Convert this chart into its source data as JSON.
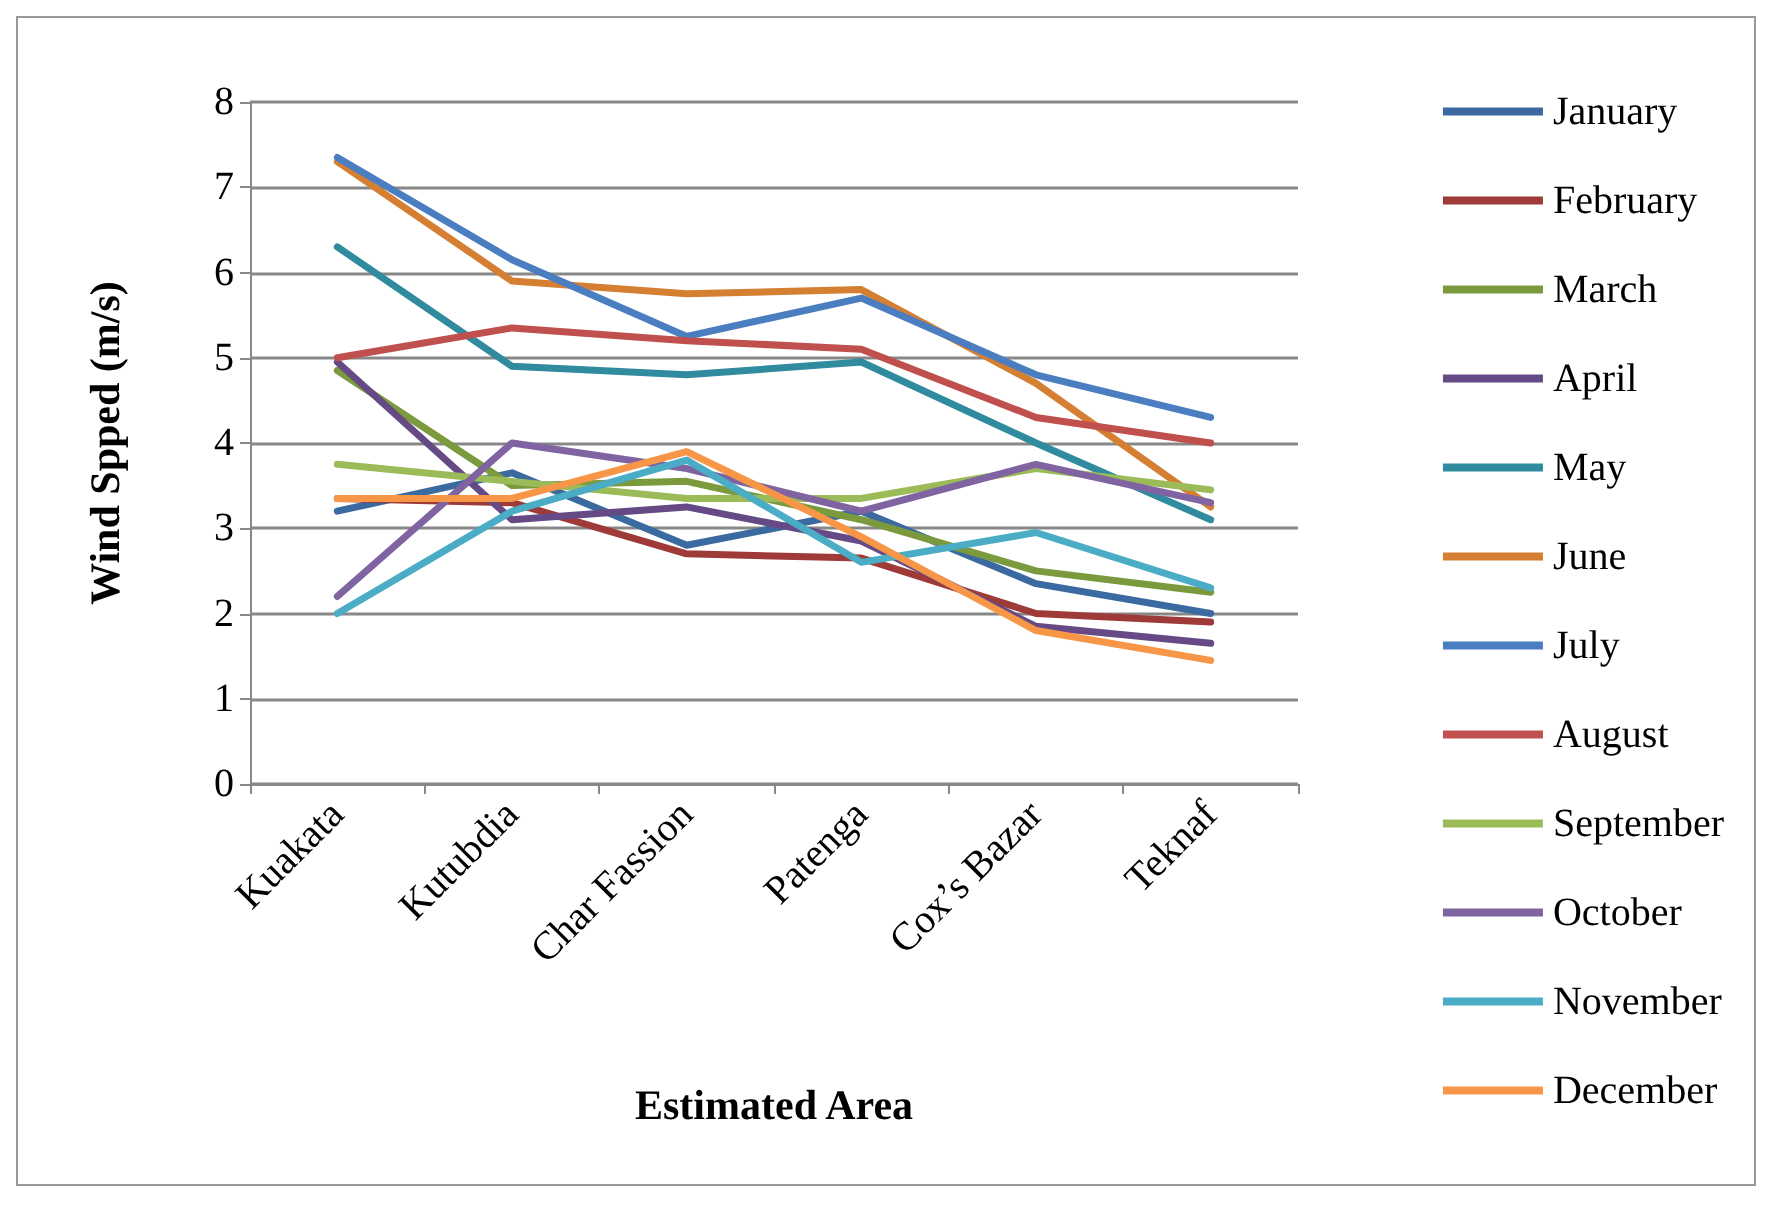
{
  "chart_data": {
    "type": "line",
    "xlabel": "Estimated Area",
    "ylabel": "Wind Spped (m/s)",
    "categories": [
      "Kuakata",
      "Kutubdia",
      "Char Fassion",
      "Patenga",
      "Cox’s Bazar",
      "Teknaf"
    ],
    "ylim": [
      0,
      8
    ],
    "yticks": [
      0,
      1,
      2,
      3,
      4,
      5,
      6,
      7,
      8
    ],
    "grid": "y",
    "legend": "right",
    "marker": "none",
    "line_style": "solid",
    "series": [
      {
        "name": "January",
        "color": "#3a6aa0",
        "values": [
          3.2,
          3.65,
          2.8,
          3.2,
          2.35,
          2.0
        ]
      },
      {
        "name": "February",
        "color": "#9e3a38",
        "values": [
          3.35,
          3.3,
          2.7,
          2.65,
          2.0,
          1.9
        ]
      },
      {
        "name": "March",
        "color": "#7b9a3e",
        "values": [
          4.85,
          3.5,
          3.55,
          3.1,
          2.5,
          2.25
        ]
      },
      {
        "name": "April",
        "color": "#654a86",
        "values": [
          4.95,
          3.1,
          3.25,
          2.85,
          1.85,
          1.65
        ]
      },
      {
        "name": "May",
        "color": "#318b9f",
        "values": [
          6.3,
          4.9,
          4.8,
          4.95,
          4.0,
          3.1
        ]
      },
      {
        "name": "June",
        "color": "#d57f33",
        "values": [
          7.3,
          5.9,
          5.75,
          5.8,
          4.7,
          3.25
        ]
      },
      {
        "name": "July",
        "color": "#4a7ec1",
        "values": [
          7.35,
          6.15,
          5.25,
          5.7,
          4.8,
          4.3
        ]
      },
      {
        "name": "August",
        "color": "#c0504d",
        "values": [
          5.0,
          5.35,
          5.2,
          5.1,
          4.3,
          4.0
        ]
      },
      {
        "name": "September",
        "color": "#9bbb59",
        "values": [
          3.75,
          3.55,
          3.35,
          3.35,
          3.7,
          3.45
        ]
      },
      {
        "name": "October",
        "color": "#8064a2",
        "values": [
          2.2,
          4.0,
          3.7,
          3.2,
          3.75,
          3.3
        ]
      },
      {
        "name": "November",
        "color": "#4bacc6",
        "values": [
          2.0,
          3.2,
          3.8,
          2.6,
          2.95,
          2.3
        ]
      },
      {
        "name": "December",
        "color": "#f79646",
        "values": [
          3.35,
          3.35,
          3.9,
          2.9,
          1.8,
          1.45
        ]
      }
    ]
  }
}
